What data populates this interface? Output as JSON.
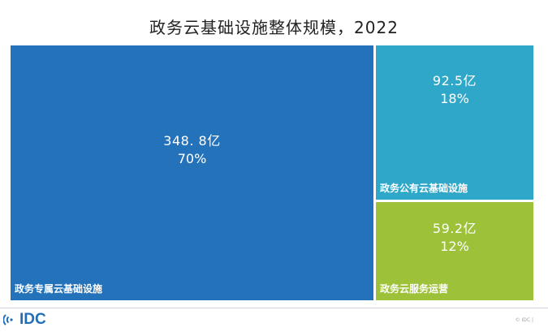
{
  "chart_data": {
    "type": "treemap",
    "title": "政务云基础设施整体规模，2022",
    "nodes": [
      {
        "id": "dedicated",
        "name": "政务专属云基础设施",
        "value": 348.8,
        "value_label": "348. 8亿",
        "percent_label": "70%",
        "color": "#2473ba"
      },
      {
        "id": "public",
        "name": "政务公有云基础设施",
        "value": 92.5,
        "value_label": "92.5亿",
        "percent_label": "18%",
        "color": "#2fa7c9"
      },
      {
        "id": "ops",
        "name": "政务云服务运营",
        "value": 59.2,
        "value_label": "59.2亿",
        "percent_label": "12%",
        "color": "#9dc23a"
      }
    ]
  },
  "footer": {
    "logo_text": "IDC",
    "copyright": "© IDC |"
  }
}
